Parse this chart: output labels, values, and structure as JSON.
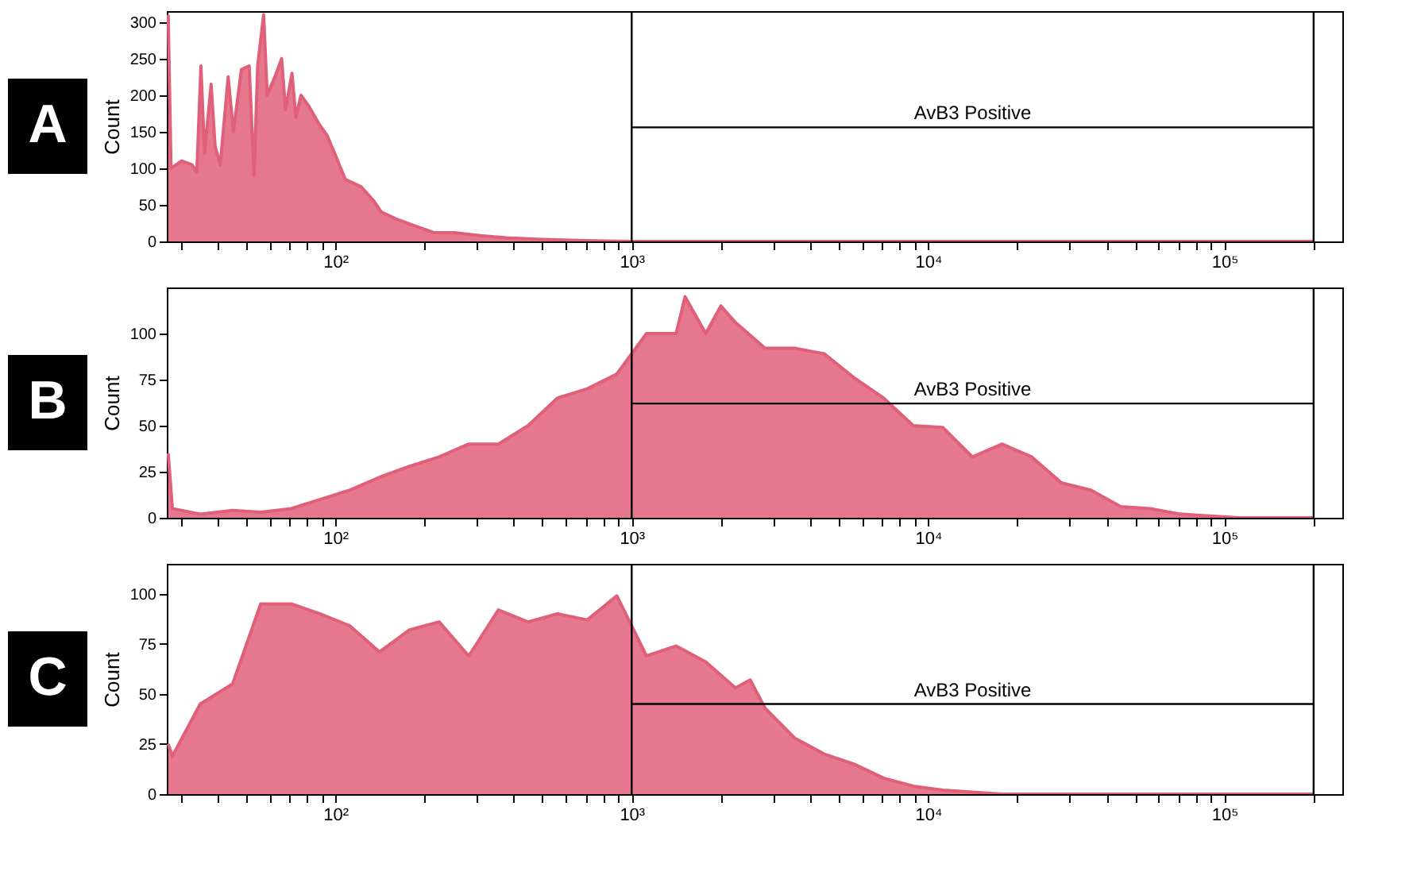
{
  "chart_data": [
    {
      "type": "area",
      "title": "A",
      "ylabel": "Count",
      "log": "x",
      "grid": false,
      "xlim": [
        27,
        250000
      ],
      "ylim": [
        0,
        315
      ],
      "yticks": [
        0,
        50,
        100,
        150,
        200,
        250,
        300
      ],
      "xticks": [
        {
          "value": 30,
          "label": null
        },
        {
          "value": 40,
          "label": null
        },
        {
          "value": 50,
          "label": null
        },
        {
          "value": 60,
          "label": null
        },
        {
          "value": 70,
          "label": null
        },
        {
          "value": 80,
          "label": null
        },
        {
          "value": 90,
          "label": null
        },
        {
          "value": 100,
          "label": "10²"
        },
        {
          "value": 200,
          "label": null
        },
        {
          "value": 300,
          "label": null
        },
        {
          "value": 400,
          "label": null
        },
        {
          "value": 500,
          "label": null
        },
        {
          "value": 600,
          "label": null
        },
        {
          "value": 700,
          "label": null
        },
        {
          "value": 800,
          "label": null
        },
        {
          "value": 900,
          "label": null
        },
        {
          "value": 1000,
          "label": "10³"
        },
        {
          "value": 2000,
          "label": null
        },
        {
          "value": 3000,
          "label": null
        },
        {
          "value": 4000,
          "label": null
        },
        {
          "value": 5000,
          "label": null
        },
        {
          "value": 6000,
          "label": null
        },
        {
          "value": 7000,
          "label": null
        },
        {
          "value": 8000,
          "label": null
        },
        {
          "value": 9000,
          "label": null
        },
        {
          "value": 10000,
          "label": "10⁴"
        },
        {
          "value": 20000,
          "label": null
        },
        {
          "value": 30000,
          "label": null
        },
        {
          "value": 40000,
          "label": null
        },
        {
          "value": 50000,
          "label": null
        },
        {
          "value": 60000,
          "label": null
        },
        {
          "value": 70000,
          "label": null
        },
        {
          "value": 80000,
          "label": null
        },
        {
          "value": 90000,
          "label": null
        },
        {
          "value": 100000,
          "label": "10⁵"
        },
        {
          "value": 200000,
          "label": null
        }
      ],
      "series": [
        {
          "color": "#e0607a",
          "x": [
            27.3,
            27.9,
            30.3,
            32.8,
            34.1,
            35.2,
            36.2,
            38.1,
            39.3,
            40.9,
            43.5,
            45.3,
            48.2,
            51.2,
            53.2,
            54.7,
            57.3,
            58.9,
            62.5,
            65.9,
            67.9,
            71.4,
            73.6,
            76.6,
            81.4,
            88.3,
            93.8,
            99.6,
            108,
            122,
            135,
            143,
            162,
            183,
            215,
            252,
            309,
            378,
            482,
            693,
            1000,
            200000
          ],
          "values": [
            310,
            100,
            110,
            105,
            95,
            240,
            120,
            215,
            130,
            105,
            225,
            150,
            235,
            240,
            90,
            240,
            310,
            200,
            225,
            250,
            180,
            230,
            170,
            200,
            185,
            160,
            145,
            120,
            85,
            75,
            55,
            40,
            30,
            22,
            12,
            12,
            8,
            5,
            3,
            1,
            0,
            0
          ]
        },
        {
          "type": "line",
          "color": "#000000",
          "x": [
            1000,
            200000
          ],
          "values": [
            156,
            156
          ]
        }
      ],
      "ref_lines": [
        {
          "axis": "x",
          "value": 1000,
          "color": "#000000"
        },
        {
          "axis": "x",
          "value": 200000,
          "color": "#000000"
        }
      ],
      "annotations": [
        "AvB3 Positive"
      ]
    },
    {
      "type": "area",
      "title": "B",
      "ylabel": "Count",
      "log": "x",
      "grid": false,
      "xlim": [
        27,
        250000
      ],
      "ylim": [
        0,
        125
      ],
      "yticks": [
        0,
        25,
        50,
        75,
        100
      ],
      "xticks": [
        {
          "value": 30,
          "label": null
        },
        {
          "value": 40,
          "label": null
        },
        {
          "value": 50,
          "label": null
        },
        {
          "value": 60,
          "label": null
        },
        {
          "value": 70,
          "label": null
        },
        {
          "value": 80,
          "label": null
        },
        {
          "value": 90,
          "label": null
        },
        {
          "value": 100,
          "label": "10²"
        },
        {
          "value": 200,
          "label": null
        },
        {
          "value": 300,
          "label": null
        },
        {
          "value": 400,
          "label": null
        },
        {
          "value": 500,
          "label": null
        },
        {
          "value": 600,
          "label": null
        },
        {
          "value": 700,
          "label": null
        },
        {
          "value": 800,
          "label": null
        },
        {
          "value": 900,
          "label": null
        },
        {
          "value": 1000,
          "label": "10³"
        },
        {
          "value": 2000,
          "label": null
        },
        {
          "value": 3000,
          "label": null
        },
        {
          "value": 4000,
          "label": null
        },
        {
          "value": 5000,
          "label": null
        },
        {
          "value": 6000,
          "label": null
        },
        {
          "value": 7000,
          "label": null
        },
        {
          "value": 8000,
          "label": null
        },
        {
          "value": 9000,
          "label": null
        },
        {
          "value": 10000,
          "label": "10⁴"
        },
        {
          "value": 20000,
          "label": null
        },
        {
          "value": 30000,
          "label": null
        },
        {
          "value": 40000,
          "label": null
        },
        {
          "value": 50000,
          "label": null
        },
        {
          "value": 60000,
          "label": null
        },
        {
          "value": 70000,
          "label": null
        },
        {
          "value": 80000,
          "label": null
        },
        {
          "value": 90000,
          "label": null
        },
        {
          "value": 100000,
          "label": "10⁵"
        },
        {
          "value": 200000,
          "label": null
        }
      ],
      "series": [
        {
          "color": "#e0607a",
          "x": [
            27.3,
            28.2,
            35,
            45,
            56,
            71,
            89,
            112,
            141,
            178,
            224,
            282,
            355,
            447,
            562,
            708,
            891,
            1122,
            1413,
            1514,
            1778,
            2000,
            2239,
            2818,
            3548,
            4467,
            5623,
            7079,
            8913,
            11220,
            14125,
            17783,
            22387,
            28184,
            35481,
            44668,
            56234,
            70795,
            89125,
            112202,
            200000
          ],
          "values": [
            35,
            5,
            2,
            4,
            3,
            5,
            10,
            15,
            22,
            28,
            33,
            40,
            40,
            50,
            65,
            70,
            78,
            100,
            100,
            120,
            100,
            115,
            106,
            92,
            92,
            89,
            76,
            65,
            50,
            49,
            33,
            40,
            33,
            19,
            15,
            6,
            5,
            2,
            1,
            0,
            0
          ]
        },
        {
          "type": "line",
          "color": "#000000",
          "x": [
            1000,
            200000
          ],
          "values": [
            62,
            62
          ]
        }
      ],
      "ref_lines": [
        {
          "axis": "x",
          "value": 1000,
          "color": "#000000"
        },
        {
          "axis": "x",
          "value": 200000,
          "color": "#000000"
        }
      ],
      "annotations": [
        "AvB3 Positive"
      ]
    },
    {
      "type": "area",
      "title": "C",
      "ylabel": "Count",
      "log": "x",
      "grid": false,
      "xlim": [
        27,
        250000
      ],
      "ylim": [
        0,
        115
      ],
      "yticks": [
        0,
        25,
        50,
        75,
        100
      ],
      "xticks": [
        {
          "value": 30,
          "label": null
        },
        {
          "value": 40,
          "label": null
        },
        {
          "value": 50,
          "label": null
        },
        {
          "value": 60,
          "label": null
        },
        {
          "value": 70,
          "label": null
        },
        {
          "value": 80,
          "label": null
        },
        {
          "value": 90,
          "label": null
        },
        {
          "value": 100,
          "label": "10²"
        },
        {
          "value": 200,
          "label": null
        },
        {
          "value": 300,
          "label": null
        },
        {
          "value": 400,
          "label": null
        },
        {
          "value": 500,
          "label": null
        },
        {
          "value": 600,
          "label": null
        },
        {
          "value": 700,
          "label": null
        },
        {
          "value": 800,
          "label": null
        },
        {
          "value": 900,
          "label": null
        },
        {
          "value": 1000,
          "label": "10³"
        },
        {
          "value": 2000,
          "label": null
        },
        {
          "value": 3000,
          "label": null
        },
        {
          "value": 4000,
          "label": null
        },
        {
          "value": 5000,
          "label": null
        },
        {
          "value": 6000,
          "label": null
        },
        {
          "value": 7000,
          "label": null
        },
        {
          "value": 8000,
          "label": null
        },
        {
          "value": 9000,
          "label": null
        },
        {
          "value": 10000,
          "label": "10⁴"
        },
        {
          "value": 20000,
          "label": null
        },
        {
          "value": 30000,
          "label": null
        },
        {
          "value": 40000,
          "label": null
        },
        {
          "value": 50000,
          "label": null
        },
        {
          "value": 60000,
          "label": null
        },
        {
          "value": 70000,
          "label": null
        },
        {
          "value": 80000,
          "label": null
        },
        {
          "value": 90000,
          "label": null
        },
        {
          "value": 100000,
          "label": "10⁵"
        },
        {
          "value": 200000,
          "label": null
        }
      ],
      "series": [
        {
          "color": "#e0607a",
          "x": [
            27.3,
            28.2,
            35,
            45,
            56,
            71,
            89,
            112,
            141,
            178,
            224,
            282,
            355,
            447,
            562,
            708,
            891,
            1122,
            1413,
            1778,
            2239,
            2512,
            2818,
            3548,
            4467,
            5623,
            7079,
            8913,
            11220,
            14125,
            17783,
            200000
          ],
          "values": [
            25,
            19,
            45,
            55,
            95,
            95,
            90,
            84,
            71,
            82,
            86,
            69,
            92,
            86,
            90,
            87,
            99,
            69,
            74,
            66,
            53,
            57,
            43,
            28,
            20,
            15,
            8,
            4,
            2,
            1,
            0,
            0
          ]
        },
        {
          "type": "line",
          "color": "#000000",
          "x": [
            1000,
            200000
          ],
          "values": [
            45,
            45
          ]
        }
      ],
      "ref_lines": [
        {
          "axis": "x",
          "value": 1000,
          "color": "#000000"
        },
        {
          "axis": "x",
          "value": 200000,
          "color": "#000000"
        }
      ],
      "annotations": [
        "AvB3 Positive"
      ]
    }
  ]
}
